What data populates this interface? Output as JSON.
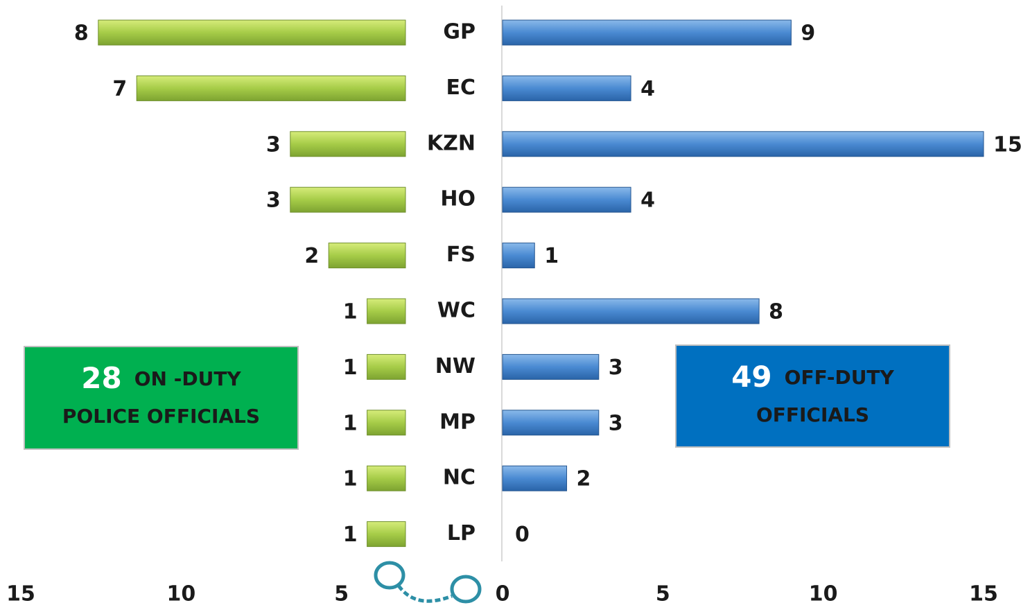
{
  "chart_data": {
    "type": "butterfly-bar",
    "categories": [
      "GP",
      "EC",
      "KZN",
      "HO",
      "FS",
      "WC",
      "NW",
      "MP",
      "NC",
      "LP"
    ],
    "series": [
      {
        "name": "ON -DUTY",
        "color": "#9bc43f",
        "values": [
          8,
          7,
          3,
          3,
          2,
          1,
          1,
          1,
          1,
          1
        ]
      },
      {
        "name": "OFF-DUTY",
        "color": "#3f82cc",
        "values": [
          9,
          4,
          15,
          4,
          1,
          8,
          3,
          3,
          2,
          0
        ]
      }
    ],
    "left_xlim": [
      15,
      0
    ],
    "left_bar_xlim": [
      0,
      10
    ],
    "left_xticks": [
      15,
      10,
      5
    ],
    "xlim": [
      0,
      15
    ],
    "xticks": [
      0,
      5,
      10,
      15
    ],
    "boxes": [
      {
        "count": "28",
        "line1": "ON -DUTY",
        "line2": "POLICE  OFFICIALS",
        "color": "#00b050"
      },
      {
        "count": "49",
        "line1": "OFF-DUTY",
        "line2": "OFFICIALS",
        "color": "#0070c0"
      }
    ]
  }
}
